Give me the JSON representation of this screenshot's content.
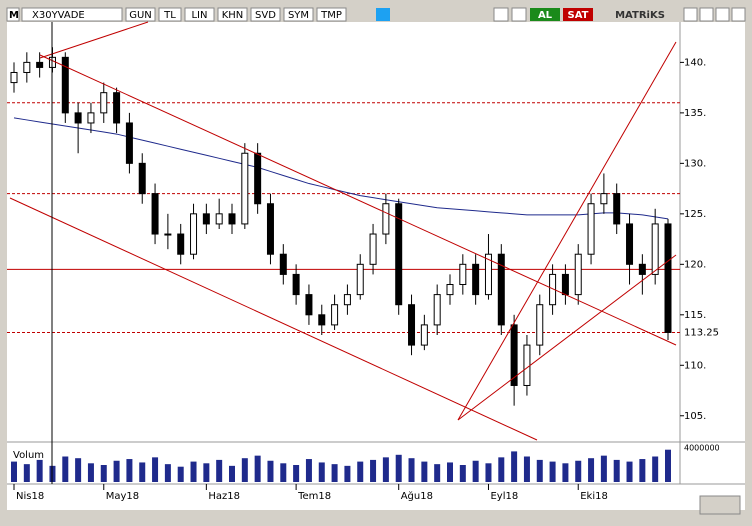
{
  "toolbar": {
    "logo": "M",
    "symbol": "X30YVADE",
    "buttons": [
      "GUN",
      "TL",
      "LIN",
      "KHN",
      "SVD",
      "SYM",
      "TMP"
    ],
    "buy": "AL",
    "sell": "SAT",
    "brand": "MATRiKS"
  },
  "chart_data": {
    "type": "candlestick",
    "categories": [
      "Nis18",
      null,
      null,
      null,
      null,
      null,
      null,
      "May18",
      null,
      null,
      null,
      null,
      null,
      null,
      null,
      "Haz18",
      null,
      null,
      null,
      null,
      null,
      null,
      "Tem18",
      null,
      null,
      null,
      null,
      null,
      null,
      null,
      "Ağu18",
      null,
      null,
      null,
      null,
      null,
      null,
      "Eyl18",
      null,
      null,
      null,
      null,
      null,
      null,
      "Eki18",
      null,
      null,
      null,
      null,
      null,
      null,
      null
    ],
    "ohlc": [
      [
        138,
        140,
        137,
        139
      ],
      [
        139,
        141,
        138,
        140
      ],
      [
        140,
        141,
        138.5,
        139.5
      ],
      [
        139.5,
        141.5,
        139,
        140.5
      ],
      [
        140.5,
        141,
        134,
        135
      ],
      [
        135,
        136,
        131,
        134
      ],
      [
        134,
        136,
        133,
        135
      ],
      [
        135,
        138,
        134,
        137
      ],
      [
        137,
        137.5,
        133,
        134
      ],
      [
        134,
        135,
        129,
        130
      ],
      [
        130,
        131,
        126,
        127
      ],
      [
        127,
        128,
        122,
        123
      ],
      [
        123,
        125,
        121.5,
        123
      ],
      [
        123,
        124,
        120,
        121
      ],
      [
        121,
        126,
        120.5,
        125
      ],
      [
        125,
        126,
        123,
        124
      ],
      [
        124,
        126.5,
        123.5,
        125
      ],
      [
        125,
        126,
        123,
        124
      ],
      [
        124,
        132,
        123.5,
        131
      ],
      [
        131,
        132,
        125,
        126
      ],
      [
        126,
        127,
        120,
        121
      ],
      [
        121,
        122,
        118,
        119
      ],
      [
        119,
        120,
        116,
        117
      ],
      [
        117,
        118,
        114,
        115
      ],
      [
        115,
        116,
        113,
        114
      ],
      [
        114,
        117,
        113.5,
        116
      ],
      [
        116,
        118,
        115,
        117
      ],
      [
        117,
        121,
        116.5,
        120
      ],
      [
        120,
        124,
        119,
        123
      ],
      [
        123,
        127,
        122,
        126
      ],
      [
        126,
        126.5,
        115,
        116
      ],
      [
        116,
        117,
        111,
        112
      ],
      [
        112,
        115,
        111.5,
        114
      ],
      [
        114,
        118,
        113,
        117
      ],
      [
        117,
        119,
        116,
        118
      ],
      [
        118,
        121,
        117,
        120
      ],
      [
        120,
        121,
        116,
        117
      ],
      [
        117,
        123,
        116.5,
        121
      ],
      [
        121,
        122,
        113,
        114
      ],
      [
        114,
        115,
        106,
        108
      ],
      [
        108,
        113,
        107,
        112
      ],
      [
        112,
        117,
        111,
        116
      ],
      [
        116,
        120,
        115,
        119
      ],
      [
        119,
        120,
        116,
        117
      ],
      [
        117,
        122,
        116,
        121
      ],
      [
        121,
        127,
        120,
        126
      ],
      [
        126,
        129,
        125,
        127
      ],
      [
        127,
        128,
        123,
        124
      ],
      [
        124,
        125,
        118,
        120
      ],
      [
        120,
        121,
        117,
        119
      ],
      [
        119,
        125.5,
        118,
        124
      ],
      [
        124,
        124.5,
        112.5,
        113.25
      ]
    ],
    "up_color": "#ffffff",
    "down_color": "#000000",
    "ma": {
      "color": "#1f2a8c",
      "values": [
        134.5,
        134.3,
        134.1,
        133.9,
        133.7,
        133.5,
        133.3,
        133.1,
        132.9,
        132.6,
        132.3,
        132,
        131.7,
        131.4,
        131.1,
        130.8,
        130.5,
        130.2,
        129.9,
        129.6,
        129.2,
        128.8,
        128.4,
        128,
        127.7,
        127.4,
        127.1,
        126.8,
        126.6,
        126.4,
        126.2,
        126,
        125.8,
        125.6,
        125.5,
        125.4,
        125.3,
        125.2,
        125.1,
        125,
        124.9,
        124.9,
        124.9,
        124.9,
        124.9,
        125,
        125.1,
        125.1,
        125,
        124.9,
        124.7,
        124.5
      ]
    },
    "levels": [
      136,
      127,
      119.5
    ],
    "last_price": {
      "value": 113.25,
      "label": "113.25"
    },
    "ylim": [
      102.6,
      144
    ],
    "yticks": [
      {
        "value": 105,
        "label": "105."
      },
      {
        "value": 110,
        "label": "110."
      },
      {
        "value": 115,
        "label": "115."
      },
      {
        "value": 120,
        "label": "120."
      },
      {
        "value": 125,
        "label": "125."
      },
      {
        "value": 130,
        "label": "130."
      },
      {
        "value": 135,
        "label": "135."
      },
      {
        "value": 140,
        "label": "140."
      }
    ],
    "volume": {
      "label": "Volum",
      "color": "#1f2a8c",
      "ylim": [
        0,
        4000000
      ],
      "yticks": [
        4000000
      ],
      "values": [
        2400000,
        2100000,
        2600000,
        1900000,
        3000000,
        2800000,
        2200000,
        2000000,
        2500000,
        2700000,
        2300000,
        2900000,
        2100000,
        1800000,
        2400000,
        2200000,
        2600000,
        1900000,
        2800000,
        3100000,
        2500000,
        2200000,
        2000000,
        2700000,
        2300000,
        2100000,
        1900000,
        2400000,
        2600000,
        2900000,
        3200000,
        2800000,
        2400000,
        2100000,
        2300000,
        2000000,
        2500000,
        2200000,
        2900000,
        3600000,
        3000000,
        2600000,
        2400000,
        2200000,
        2500000,
        2800000,
        3100000,
        2600000,
        2400000,
        2700000,
        3000000,
        3800000
      ]
    }
  }
}
